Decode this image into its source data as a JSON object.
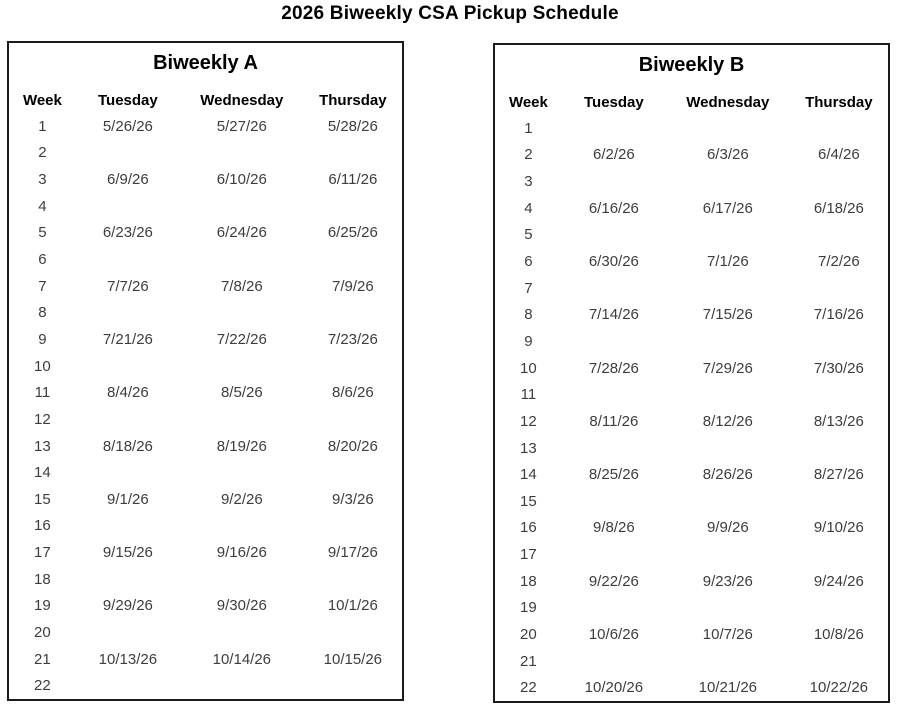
{
  "page_title": "2026 Biweekly CSA Pickup Schedule",
  "colors": {
    "border": "#1a1a1a",
    "heading_text": "#000000",
    "data_text": "#3d3d3d",
    "background": "#ffffff"
  },
  "columns": [
    "Week",
    "Tuesday",
    "Wednesday",
    "Thursday"
  ],
  "tables": [
    {
      "title": "Biweekly A",
      "rows": [
        {
          "week": "1",
          "tuesday": "5/26/26",
          "wednesday": "5/27/26",
          "thursday": "5/28/26"
        },
        {
          "week": "2",
          "tuesday": "",
          "wednesday": "",
          "thursday": ""
        },
        {
          "week": "3",
          "tuesday": "6/9/26",
          "wednesday": "6/10/26",
          "thursday": "6/11/26"
        },
        {
          "week": "4",
          "tuesday": "",
          "wednesday": "",
          "thursday": ""
        },
        {
          "week": "5",
          "tuesday": "6/23/26",
          "wednesday": "6/24/26",
          "thursday": "6/25/26"
        },
        {
          "week": "6",
          "tuesday": "",
          "wednesday": "",
          "thursday": ""
        },
        {
          "week": "7",
          "tuesday": "7/7/26",
          "wednesday": "7/8/26",
          "thursday": "7/9/26"
        },
        {
          "week": "8",
          "tuesday": "",
          "wednesday": "",
          "thursday": ""
        },
        {
          "week": "9",
          "tuesday": "7/21/26",
          "wednesday": "7/22/26",
          "thursday": "7/23/26"
        },
        {
          "week": "10",
          "tuesday": "",
          "wednesday": "",
          "thursday": ""
        },
        {
          "week": "11",
          "tuesday": "8/4/26",
          "wednesday": "8/5/26",
          "thursday": "8/6/26"
        },
        {
          "week": "12",
          "tuesday": "",
          "wednesday": "",
          "thursday": ""
        },
        {
          "week": "13",
          "tuesday": "8/18/26",
          "wednesday": "8/19/26",
          "thursday": "8/20/26"
        },
        {
          "week": "14",
          "tuesday": "",
          "wednesday": "",
          "thursday": ""
        },
        {
          "week": "15",
          "tuesday": "9/1/26",
          "wednesday": "9/2/26",
          "thursday": "9/3/26"
        },
        {
          "week": "16",
          "tuesday": "",
          "wednesday": "",
          "thursday": ""
        },
        {
          "week": "17",
          "tuesday": "9/15/26",
          "wednesday": "9/16/26",
          "thursday": "9/17/26"
        },
        {
          "week": "18",
          "tuesday": "",
          "wednesday": "",
          "thursday": ""
        },
        {
          "week": "19",
          "tuesday": "9/29/26",
          "wednesday": "9/30/26",
          "thursday": "10/1/26"
        },
        {
          "week": "20",
          "tuesday": "",
          "wednesday": "",
          "thursday": ""
        },
        {
          "week": "21",
          "tuesday": "10/13/26",
          "wednesday": "10/14/26",
          "thursday": "10/15/26"
        },
        {
          "week": "22",
          "tuesday": "",
          "wednesday": "",
          "thursday": ""
        }
      ]
    },
    {
      "title": "Biweekly B",
      "rows": [
        {
          "week": "1",
          "tuesday": "",
          "wednesday": "",
          "thursday": ""
        },
        {
          "week": "2",
          "tuesday": "6/2/26",
          "wednesday": "6/3/26",
          "thursday": "6/4/26"
        },
        {
          "week": "3",
          "tuesday": "",
          "wednesday": "",
          "thursday": ""
        },
        {
          "week": "4",
          "tuesday": "6/16/26",
          "wednesday": "6/17/26",
          "thursday": "6/18/26"
        },
        {
          "week": "5",
          "tuesday": "",
          "wednesday": "",
          "thursday": ""
        },
        {
          "week": "6",
          "tuesday": "6/30/26",
          "wednesday": "7/1/26",
          "thursday": "7/2/26"
        },
        {
          "week": "7",
          "tuesday": "",
          "wednesday": "",
          "thursday": ""
        },
        {
          "week": "8",
          "tuesday": "7/14/26",
          "wednesday": "7/15/26",
          "thursday": "7/16/26"
        },
        {
          "week": "9",
          "tuesday": "",
          "wednesday": "",
          "thursday": ""
        },
        {
          "week": "10",
          "tuesday": "7/28/26",
          "wednesday": "7/29/26",
          "thursday": "7/30/26"
        },
        {
          "week": "11",
          "tuesday": "",
          "wednesday": "",
          "thursday": ""
        },
        {
          "week": "12",
          "tuesday": "8/11/26",
          "wednesday": "8/12/26",
          "thursday": "8/13/26"
        },
        {
          "week": "13",
          "tuesday": "",
          "wednesday": "",
          "thursday": ""
        },
        {
          "week": "14",
          "tuesday": "8/25/26",
          "wednesday": "8/26/26",
          "thursday": "8/27/26"
        },
        {
          "week": "15",
          "tuesday": "",
          "wednesday": "",
          "thursday": ""
        },
        {
          "week": "16",
          "tuesday": "9/8/26",
          "wednesday": "9/9/26",
          "thursday": "9/10/26"
        },
        {
          "week": "17",
          "tuesday": "",
          "wednesday": "",
          "thursday": ""
        },
        {
          "week": "18",
          "tuesday": "9/22/26",
          "wednesday": "9/23/26",
          "thursday": "9/24/26"
        },
        {
          "week": "19",
          "tuesday": "",
          "wednesday": "",
          "thursday": ""
        },
        {
          "week": "20",
          "tuesday": "10/6/26",
          "wednesday": "10/7/26",
          "thursday": "10/8/26"
        },
        {
          "week": "21",
          "tuesday": "",
          "wednesday": "",
          "thursday": ""
        },
        {
          "week": "22",
          "tuesday": "10/20/26",
          "wednesday": "10/21/26",
          "thursday": "10/22/26"
        }
      ]
    }
  ]
}
